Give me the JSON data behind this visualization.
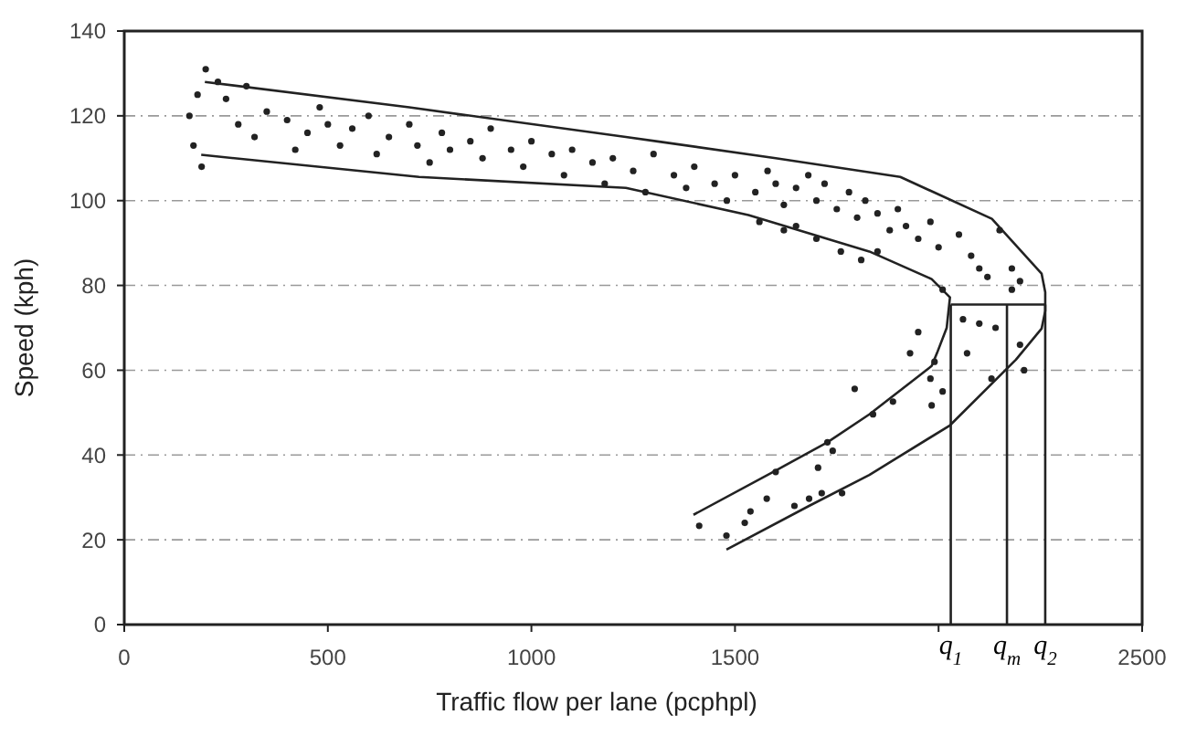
{
  "chart_data": {
    "type": "scatter",
    "xlabel": "Traffic flow per lane (pcphpl)",
    "ylabel": "Speed (kph)",
    "xlim": [
      0,
      2500
    ],
    "ylim": [
      0,
      140
    ],
    "xticks": [
      0,
      500,
      1000,
      1500,
      {
        "value": 2000,
        "label": null
      },
      2500
    ],
    "yticks": [
      0,
      20,
      40,
      60,
      80,
      100,
      120,
      140
    ],
    "grid": "y",
    "series": [
      {
        "marker": "circle",
        "color": "#222222",
        "x": [
          200,
          230,
          180,
          160,
          170,
          190,
          250,
          280,
          300,
          320,
          350,
          400,
          420,
          450,
          480,
          500,
          530,
          560,
          600,
          620,
          650,
          700,
          720,
          750,
          780,
          800,
          850,
          880,
          900,
          950,
          980,
          1000,
          1050,
          1080,
          1100,
          1150,
          1180,
          1200,
          1250,
          1280,
          1300,
          1350,
          1380,
          1400,
          1450,
          1480,
          1500,
          1550,
          1580,
          1600,
          1620,
          1650,
          1680,
          1700,
          1720,
          1750,
          1780,
          1800,
          1820,
          1850,
          1880,
          1900,
          1920,
          1950,
          1980,
          2000,
          2050,
          2080,
          2100,
          2150,
          2180,
          2200,
          1850,
          1700,
          1650,
          1560,
          1620,
          1760,
          1810,
          2120,
          2180,
          2010,
          2060,
          2100,
          2140,
          2200,
          1950,
          1930,
          1990,
          2010,
          1980,
          2130,
          2210,
          2070,
          1794,
          1839,
          1888,
          1983,
          1727,
          1740,
          1704,
          1682,
          1578,
          1538,
          1524,
          1412,
          1479,
          1600,
          1646,
          1713,
          1763
        ],
        "values": [
          131,
          128,
          125,
          120,
          113,
          108,
          124,
          118,
          127,
          115,
          121,
          119,
          112,
          116,
          122,
          118,
          113,
          117,
          120,
          111,
          115,
          118,
          113,
          109,
          116,
          112,
          114,
          110,
          117,
          112,
          108,
          114,
          111,
          106,
          112,
          109,
          104,
          110,
          107,
          102,
          111,
          106,
          103,
          108,
          104,
          100,
          106,
          102,
          107,
          104,
          99,
          103,
          106,
          100,
          104,
          98,
          102,
          96,
          100,
          97,
          93,
          98,
          94,
          91,
          95,
          89,
          92,
          87,
          84,
          93,
          84,
          81,
          88,
          91,
          94,
          95,
          93,
          88,
          86,
          82,
          79,
          79,
          72,
          71,
          70,
          66,
          69,
          64,
          62,
          55,
          58,
          58,
          60,
          64,
          55.6,
          49.6,
          52.6,
          51.7,
          43,
          41,
          37,
          29.7,
          29.7,
          26.7,
          24,
          23.3,
          21,
          36,
          28,
          31,
          31
        ]
      },
      {
        "type": "line",
        "color": "#222222",
        "x": [
          198,
          700,
          1232,
          1322,
          1600,
          1906,
          2131,
          2253,
          2262,
          2262,
          2253,
          2190,
          2028,
          1830,
          1682,
          1479
        ],
        "values": [
          128,
          122,
          115,
          113.8,
          110,
          105.6,
          95.7,
          82.8,
          78.4,
          74,
          69.8,
          62.5,
          47,
          35.3,
          28,
          17.7
        ]
      },
      {
        "type": "line",
        "color": "#222222",
        "x": [
          189,
          724,
          1232,
          1533,
          1830,
          1983,
          2028,
          2020,
          1996,
          1983,
          1830,
          1727,
          1605,
          1398
        ],
        "values": [
          110.8,
          105.6,
          103,
          96.6,
          88,
          81.5,
          77.2,
          70,
          64,
          61,
          49.6,
          43,
          36.6,
          25.9
        ]
      },
      {
        "type": "line",
        "color": "#222222",
        "x": [
          2030,
          2262
        ],
        "values": [
          75.5,
          75.5
        ]
      },
      {
        "type": "line",
        "color": "#222222",
        "x": [
          2030,
          2030
        ],
        "values": [
          0,
          75.5
        ]
      },
      {
        "type": "line",
        "color": "#222222",
        "x": [
          2168,
          2168
        ],
        "values": [
          0,
          75.5
        ]
      },
      {
        "type": "line",
        "color": "#222222",
        "x": [
          2262,
          2262
        ],
        "values": [
          0,
          75.5
        ]
      }
    ],
    "annotations": [
      {
        "text": "q$_{1}$",
        "x": 2030,
        "y": 0
      },
      {
        "text": "q$_{m}$",
        "x": 2168,
        "y": 0
      },
      {
        "text": "q$_{2}$",
        "x": 2262,
        "y": 0
      }
    ]
  }
}
